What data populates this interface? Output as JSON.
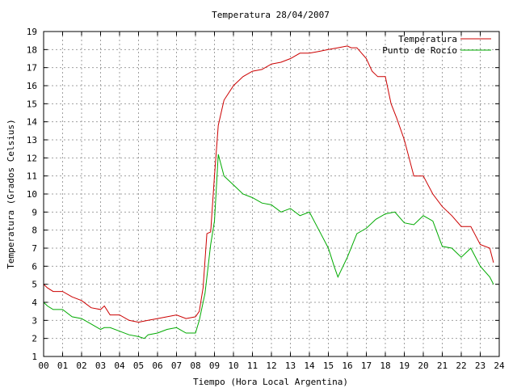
{
  "chart_data": {
    "type": "line",
    "title": "Temperatura 28/04/2007",
    "xlabel": "Tiempo (Hora Local Argentina)",
    "ylabel": "Temperatura (Grados Celsius)",
    "xlim": [
      0,
      24
    ],
    "ylim": [
      1,
      19
    ],
    "x_tick_labels": [
      "00",
      "01",
      "02",
      "03",
      "04",
      "05",
      "06",
      "07",
      "08",
      "09",
      "10",
      "11",
      "12",
      "13",
      "14",
      "15",
      "16",
      "17",
      "18",
      "19",
      "20",
      "21",
      "22",
      "23",
      "24"
    ],
    "y_tick_labels": [
      "1",
      "2",
      "3",
      "4",
      "5",
      "6",
      "7",
      "8",
      "9",
      "10",
      "11",
      "12",
      "13",
      "14",
      "15",
      "16",
      "17",
      "18",
      "19"
    ],
    "grid": true,
    "legend_position": "top-right",
    "series": [
      {
        "name": "Temperatura",
        "color": "#cc0000",
        "x": [
          0.0,
          0.2,
          0.5,
          1.0,
          1.5,
          2.0,
          2.5,
          3.0,
          3.2,
          3.5,
          4.0,
          4.5,
          5.0,
          5.5,
          6.0,
          6.5,
          7.0,
          7.5,
          8.0,
          8.2,
          8.4,
          8.6,
          8.8,
          9.0,
          9.2,
          9.5,
          10.0,
          10.5,
          11.0,
          11.5,
          12.0,
          12.5,
          13.0,
          13.5,
          14.0,
          14.5,
          15.0,
          15.5,
          16.0,
          16.2,
          16.5,
          17.0,
          17.3,
          17.6,
          18.0,
          18.3,
          18.6,
          19.0,
          19.5,
          20.0,
          20.5,
          21.0,
          21.5,
          22.0,
          22.5,
          23.0,
          23.5,
          23.7
        ],
        "values": [
          5.0,
          4.8,
          4.6,
          4.6,
          4.3,
          4.1,
          3.7,
          3.6,
          3.8,
          3.3,
          3.3,
          3.0,
          2.9,
          3.0,
          3.1,
          3.2,
          3.3,
          3.1,
          3.2,
          3.5,
          4.8,
          7.8,
          7.9,
          11.0,
          13.8,
          15.2,
          16.0,
          16.5,
          16.8,
          16.9,
          17.2,
          17.3,
          17.5,
          17.8,
          17.8,
          17.9,
          18.0,
          18.1,
          18.2,
          18.1,
          18.1,
          17.5,
          16.8,
          16.5,
          16.5,
          15.0,
          14.2,
          13.0,
          11.0,
          11.0,
          10.0,
          9.3,
          8.8,
          8.2,
          8.2,
          7.2,
          7.0,
          6.2
        ]
      },
      {
        "name": "Punto de Rocío",
        "color": "#00aa00",
        "x": [
          0.0,
          0.2,
          0.5,
          1.0,
          1.5,
          2.0,
          2.5,
          3.0,
          3.2,
          3.5,
          4.0,
          4.5,
          5.0,
          5.3,
          5.5,
          6.0,
          6.5,
          7.0,
          7.5,
          8.0,
          8.2,
          8.5,
          8.8,
          9.0,
          9.2,
          9.5,
          10.0,
          10.5,
          11.0,
          11.5,
          12.0,
          12.5,
          13.0,
          13.5,
          14.0,
          14.5,
          15.0,
          15.3,
          15.5,
          16.0,
          16.5,
          17.0,
          17.5,
          18.0,
          18.5,
          19.0,
          19.5,
          20.0,
          20.5,
          21.0,
          21.5,
          22.0,
          22.5,
          23.0,
          23.5,
          23.7
        ],
        "values": [
          4.0,
          3.8,
          3.6,
          3.6,
          3.2,
          3.1,
          2.8,
          2.5,
          2.6,
          2.6,
          2.4,
          2.2,
          2.1,
          2.0,
          2.2,
          2.3,
          2.5,
          2.6,
          2.3,
          2.3,
          3.0,
          4.5,
          7.2,
          8.5,
          12.2,
          11.0,
          10.5,
          10.0,
          9.8,
          9.5,
          9.4,
          9.0,
          9.2,
          8.8,
          9.0,
          8.0,
          7.0,
          6.0,
          5.4,
          6.5,
          7.8,
          8.1,
          8.6,
          8.9,
          9.0,
          8.4,
          8.3,
          8.8,
          8.5,
          7.1,
          7.0,
          6.5,
          7.0,
          6.0,
          5.4,
          5.0
        ]
      }
    ]
  }
}
